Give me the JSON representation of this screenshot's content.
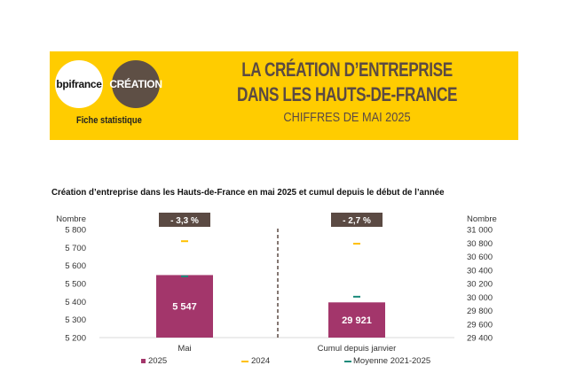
{
  "header": {
    "logo_bpi": "bpifrance",
    "logo_creation": "CRÉATION",
    "fiche": "Fiche statistique",
    "title_line1": "LA CRÉATION D’ENTREPRISE",
    "title_line2": "DANS LES HAUTS-DE-FRANCE",
    "subtitle": "CHIFFRES DE MAI 2025"
  },
  "colors": {
    "banner": "#ffcc00",
    "bar_2025": "#a3366b",
    "marker_2024": "#ffc000",
    "marker_moyenne": "#1a8a7a",
    "badge": "#5b4a43"
  },
  "chart_data": {
    "type": "bar",
    "title": "Création d’entreprise dans les Hauts-de-France  en mai 2025 et cumul depuis le début de l’année",
    "categories": [
      "Mai",
      "Cumul depuis janvier"
    ],
    "left_axis": {
      "label": "Nombre",
      "ylim": [
        5200,
        5800
      ],
      "ticks": [
        "5 200",
        "5 300",
        "5 400",
        "5 500",
        "5 600",
        "5 700",
        "5 800"
      ]
    },
    "right_axis": {
      "label": "Nombre",
      "ylim": [
        29400,
        31000
      ],
      "ticks": [
        "29 400",
        "29 600",
        "29 800",
        "30 000",
        "30 200",
        "30 400",
        "30 600",
        "30 800",
        "31 000"
      ]
    },
    "series": [
      {
        "name": "2025",
        "values": [
          5547,
          29921
        ],
        "labels": [
          "5 547",
          "29 921"
        ]
      },
      {
        "name": "2024",
        "values": [
          5735,
          30790
        ]
      },
      {
        "name": "Moyenne 2021-2025",
        "values": [
          5540,
          30005
        ]
      }
    ],
    "badges": [
      "- 3,3 %",
      "- 2,7 %"
    ],
    "legend_position": "bottom"
  }
}
